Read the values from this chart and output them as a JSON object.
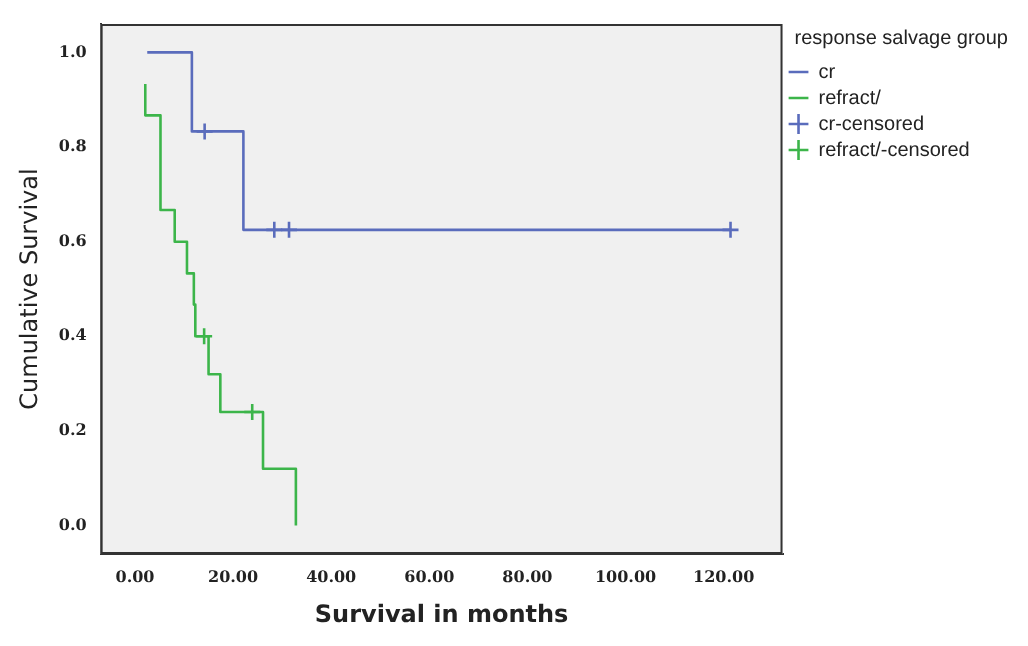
{
  "chart_data": {
    "type": "step",
    "xlabel": "Survival in months",
    "ylabel": "Cumulative Survival",
    "legend_title": "response salvage group",
    "legend": "right",
    "grid": false,
    "xlim": [
      -7,
      132
    ],
    "xticks": [
      {
        "value": 0,
        "label": "0.00"
      },
      {
        "value": 20,
        "label": "20.00"
      },
      {
        "value": 40,
        "label": "40.00"
      },
      {
        "value": 60,
        "label": "60.00"
      },
      {
        "value": 80,
        "label": "80.00"
      },
      {
        "value": 100,
        "label": "100.00"
      },
      {
        "value": 120,
        "label": "120.00"
      }
    ],
    "ylim": [
      -0.06,
      1.06
    ],
    "yticks": [
      {
        "value": 0,
        "label": "0.0"
      },
      {
        "value": 0.2,
        "label": "0.2"
      },
      {
        "value": 0.4,
        "label": "0.4"
      },
      {
        "value": 0.6,
        "label": "0.6"
      },
      {
        "value": 0.8,
        "label": "0.8"
      },
      {
        "value": 1,
        "label": "1.0"
      }
    ],
    "series": [
      {
        "name": "cr",
        "type": "step",
        "color": "#5a6cbc",
        "marker": "none",
        "x": [
          2.5,
          11.6,
          22.1,
          121.4
        ],
        "values": [
          1,
          0.833,
          0.625,
          0.625
        ]
      },
      {
        "name": "refract/",
        "type": "step",
        "color": "#3cb54a",
        "marker": "none",
        "x": [
          2.1,
          2.1,
          5.2,
          5.2,
          8.1,
          10.6,
          12.0,
          12.3,
          15.0,
          17.4,
          26.1,
          32.8
        ],
        "values": [
          0.933,
          0.867,
          0.733,
          0.667,
          0.6,
          0.533,
          0.467,
          0.4,
          0.32,
          0.24,
          0.12,
          0.0
        ]
      },
      {
        "name": "cr-censored",
        "type": "scatter",
        "color": "#5a6cbc",
        "marker": "cross",
        "x": [
          14.2,
          28.4,
          31.4,
          121.4
        ],
        "values": [
          0.833,
          0.625,
          0.625,
          0.625
        ]
      },
      {
        "name": "refract/-censored",
        "type": "scatter",
        "color": "#3cb54a",
        "marker": "cross",
        "x": [
          14.1,
          23.9
        ],
        "values": [
          0.4,
          0.24
        ]
      }
    ]
  }
}
